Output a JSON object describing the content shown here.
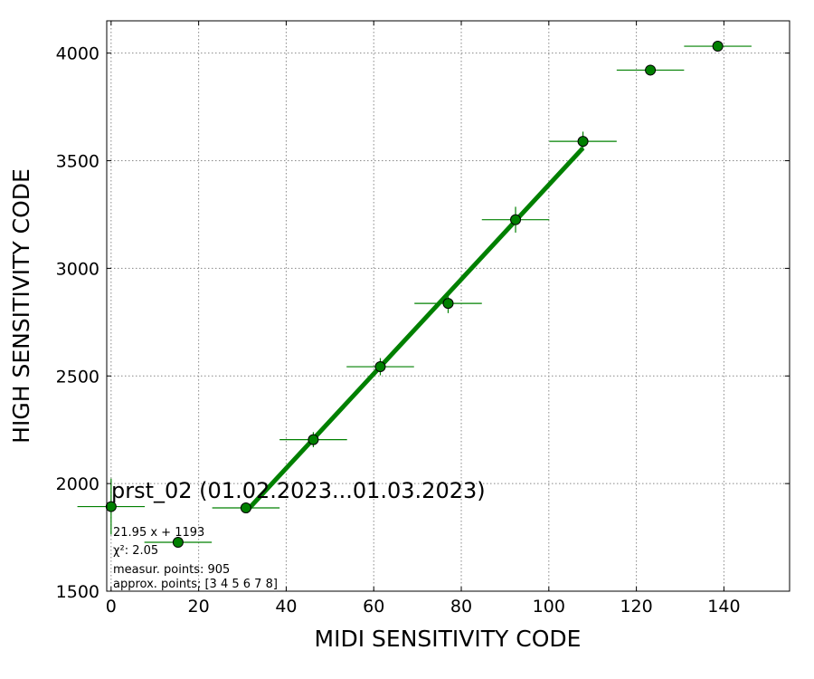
{
  "chart_data": {
    "type": "scatter",
    "xlabel": "MIDI SENSITIVITY CODE",
    "ylabel": "HIGH SENSITIVITY CODE",
    "xlim": [
      -1,
      155
    ],
    "ylim": [
      1500,
      4150
    ],
    "xticks": [
      0,
      20,
      40,
      60,
      80,
      100,
      120,
      140
    ],
    "yticks": [
      1500,
      2000,
      2500,
      3000,
      3500,
      4000
    ],
    "grid": true,
    "color": "#008000",
    "points": [
      {
        "x": 0,
        "y": 1893,
        "xerr": 7.7,
        "yerr": 130
      },
      {
        "x": 15.3,
        "y": 1727,
        "xerr": 7.7,
        "yerr": 20
      },
      {
        "x": 30.8,
        "y": 1887,
        "xerr": 7.7,
        "yerr": 25
      },
      {
        "x": 46.2,
        "y": 2204,
        "xerr": 7.7,
        "yerr": 35
      },
      {
        "x": 61.5,
        "y": 2543,
        "xerr": 7.7,
        "yerr": 40
      },
      {
        "x": 77.0,
        "y": 2837,
        "xerr": 7.7,
        "yerr": 45
      },
      {
        "x": 92.4,
        "y": 3226,
        "xerr": 7.7,
        "yerr": 60
      },
      {
        "x": 107.8,
        "y": 3590,
        "xerr": 7.7,
        "yerr": 45
      },
      {
        "x": 123.2,
        "y": 3921,
        "xerr": 7.7,
        "yerr": 25
      },
      {
        "x": 138.6,
        "y": 4032,
        "xerr": 7.7,
        "yerr": 12
      }
    ],
    "fit": {
      "slope": 21.95,
      "intercept": 1193,
      "x_range": [
        30.8,
        107.8
      ]
    },
    "annotation": {
      "title": "prst_02 (01.02.2023...01.03.2023)",
      "lines": [
        "21.95 x + 1193",
        "χ²: 2.05",
        "measur. points: 905",
        "approx. points: [3 4 5 6 7 8]"
      ]
    }
  }
}
